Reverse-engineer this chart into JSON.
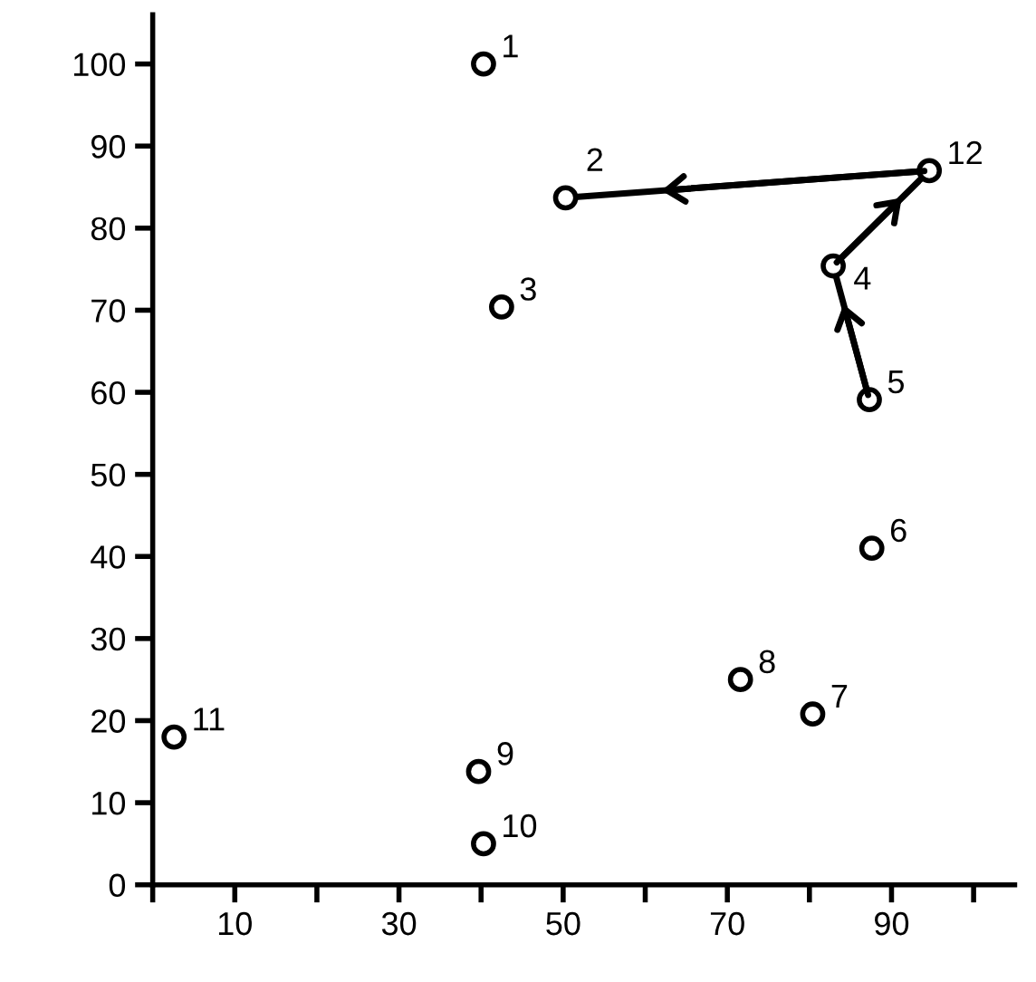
{
  "chart_data": {
    "type": "scatter",
    "series": [
      {
        "color": "#000000",
        "marker": "circle",
        "x": [
          40.3,
          50.3,
          42.5,
          82.9,
          87.3,
          87.6,
          80.4,
          71.6,
          39.7,
          40.3,
          2.6,
          94.6
        ],
        "values": [
          100,
          83.7,
          70.4,
          75.4,
          59.1,
          41.0,
          20.8,
          25.0,
          13.8,
          5.0,
          18.0,
          87.0
        ]
      },
      {
        "type": "line",
        "color": "#000000",
        "line_style": "solid",
        "x": [
          87.3,
          82.9,
          94.6,
          50.3
        ],
        "values": [
          59.1,
          75.4,
          87.0,
          83.7
        ]
      }
    ],
    "annotations": [
      {
        "text": "1",
        "x": 40.3,
        "y": 100
      },
      {
        "text": "2",
        "x": 50.3,
        "y": 83.7
      },
      {
        "text": "3",
        "x": 42.5,
        "y": 70.4
      },
      {
        "text": "4",
        "x": 82.9,
        "y": 75.4
      },
      {
        "text": "5",
        "x": 87.3,
        "y": 59.1
      },
      {
        "text": "6",
        "x": 87.6,
        "y": 41.0
      },
      {
        "text": "7",
        "x": 80.4,
        "y": 20.8
      },
      {
        "text": "8",
        "x": 71.6,
        "y": 25.0
      },
      {
        "text": "9",
        "x": 39.7,
        "y": 13.8
      },
      {
        "text": "10",
        "x": 40.3,
        "y": 5.0
      },
      {
        "text": "11",
        "x": 2.6,
        "y": 18.0
      },
      {
        "text": "12",
        "x": 94.6,
        "y": 87.0
      }
    ],
    "xlim": [
      0,
      105
    ],
    "ylim": [
      0,
      106
    ],
    "xticks": [
      {
        "value": 0,
        "label": null
      },
      10,
      {
        "value": 20,
        "label": null
      },
      30,
      {
        "value": 40,
        "label": null
      },
      50,
      {
        "value": 60,
        "label": null
      },
      70,
      {
        "value": 80,
        "label": null
      },
      90,
      {
        "value": 100,
        "label": null
      }
    ],
    "yticks": [
      0,
      10,
      20,
      30,
      40,
      50,
      60,
      70,
      80,
      90,
      100
    ],
    "grid": false,
    "legend": false
  }
}
